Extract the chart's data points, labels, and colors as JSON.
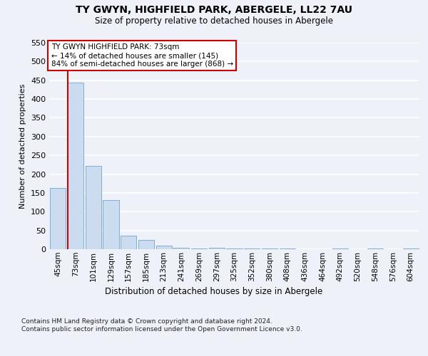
{
  "title1": "TY GWYN, HIGHFIELD PARK, ABERGELE, LL22 7AU",
  "title2": "Size of property relative to detached houses in Abergele",
  "xlabel": "Distribution of detached houses by size in Abergele",
  "ylabel": "Number of detached properties",
  "bins": [
    "45sqm",
    "73sqm",
    "101sqm",
    "129sqm",
    "157sqm",
    "185sqm",
    "213sqm",
    "241sqm",
    "269sqm",
    "297sqm",
    "325sqm",
    "352sqm",
    "380sqm",
    "408sqm",
    "436sqm",
    "464sqm",
    "492sqm",
    "520sqm",
    "548sqm",
    "576sqm",
    "604sqm"
  ],
  "values": [
    163,
    443,
    222,
    130,
    36,
    24,
    9,
    4,
    2,
    3,
    1,
    1,
    2,
    1,
    0,
    0,
    1,
    0,
    1,
    0,
    1
  ],
  "bar_color": "#ccdcf0",
  "bar_edge_color": "#7bafd4",
  "highlight_color": "#cc0000",
  "ylim": [
    0,
    550
  ],
  "yticks": [
    0,
    50,
    100,
    150,
    200,
    250,
    300,
    350,
    400,
    450,
    500,
    550
  ],
  "annotation_line1": "TY GWYN HIGHFIELD PARK: 73sqm",
  "annotation_line2": "← 14% of detached houses are smaller (145)",
  "annotation_line3": "84% of semi-detached houses are larger (868) →",
  "footer": "Contains HM Land Registry data © Crown copyright and database right 2024.\nContains public sector information licensed under the Open Government Licence v3.0.",
  "background_color": "#eef2f8",
  "plot_bg_color": "#eef2f8",
  "grid_color": "#ffffff"
}
